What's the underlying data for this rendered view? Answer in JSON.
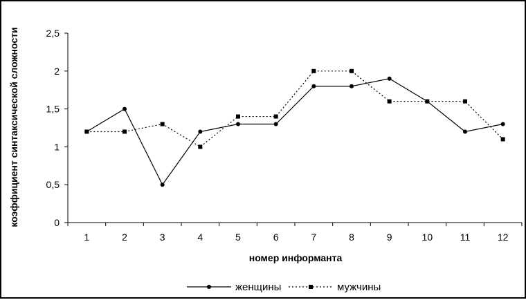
{
  "chart_data": {
    "type": "line",
    "title": "",
    "xlabel": "номер информанта",
    "ylabel": "коэффициент синтаксической сложности",
    "categories": [
      "1",
      "2",
      "3",
      "4",
      "5",
      "6",
      "7",
      "8",
      "9",
      "10",
      "11",
      "12"
    ],
    "ylim": [
      0,
      2.5
    ],
    "yticks": [
      "0",
      "0,5",
      "1",
      "1,5",
      "2",
      "2,5"
    ],
    "ytick_values": [
      0,
      0.5,
      1,
      1.5,
      2,
      2.5
    ],
    "grid": false,
    "legend_position": "bottom",
    "series": [
      {
        "name": "женщины",
        "values": [
          1.2,
          1.5,
          0.5,
          1.2,
          1.3,
          1.3,
          1.8,
          1.8,
          1.9,
          1.6,
          1.2,
          1.3
        ],
        "style": "solid",
        "marker": "circle",
        "color": "#000000"
      },
      {
        "name": "мужчины",
        "values": [
          1.2,
          1.2,
          1.3,
          1.0,
          1.4,
          1.4,
          2.0,
          2.0,
          1.6,
          1.6,
          1.6,
          1.1
        ],
        "style": "dotted",
        "marker": "square",
        "color": "#000000"
      }
    ]
  }
}
